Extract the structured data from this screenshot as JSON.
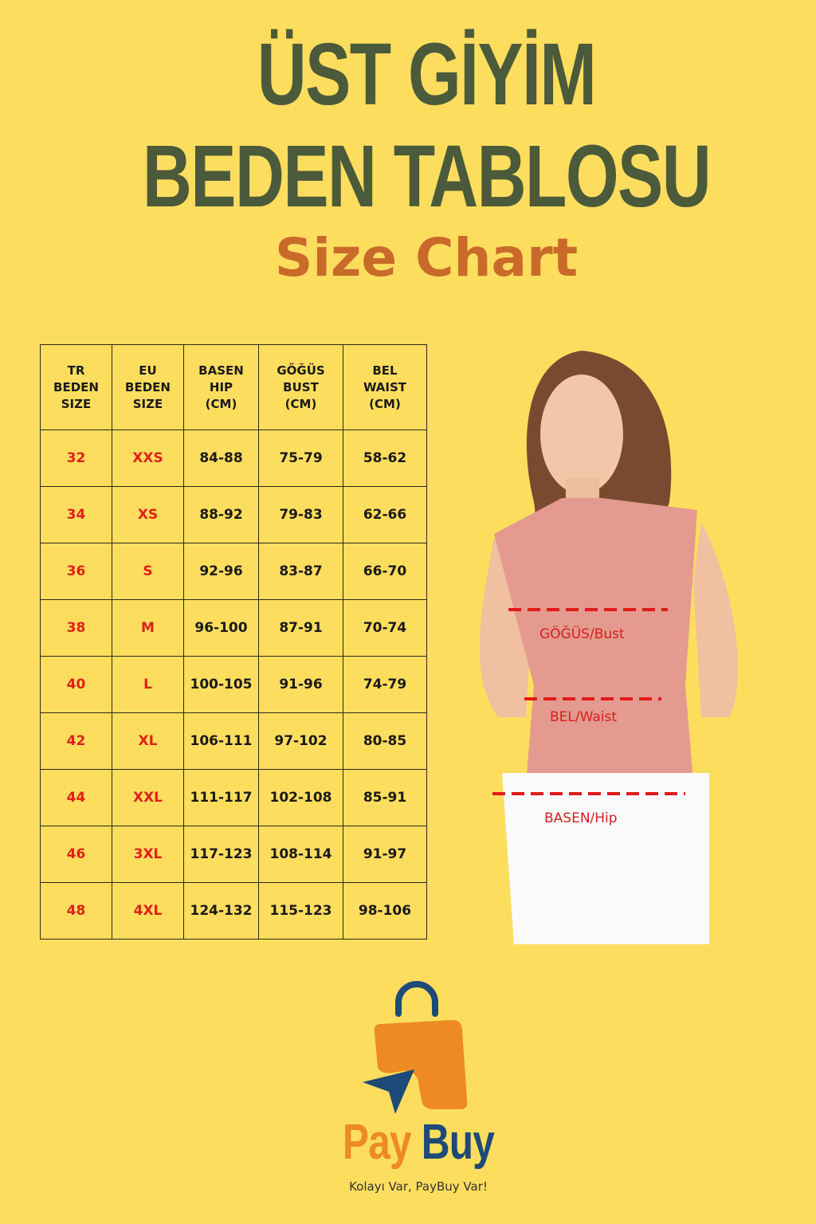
{
  "header": {
    "title_line1": "ÜST GİYİM",
    "title_line2": "BEDEN TABLOSU",
    "subtitle": "Size Chart"
  },
  "table": {
    "headers": [
      "TR\nBEDEN\nSIZE",
      "EU\nBEDEN\nSIZE",
      "BASEN\nHIP\n(CM)",
      "GÖĞÜS\nBUST\n(CM)",
      "BEL\nWAIST\n(CM)"
    ],
    "rows": [
      [
        "32",
        "XXS",
        "84-88",
        "75-79",
        "58-62"
      ],
      [
        "34",
        "XS",
        "88-92",
        "79-83",
        "62-66"
      ],
      [
        "36",
        "S",
        "92-96",
        "83-87",
        "66-70"
      ],
      [
        "38",
        "M",
        "96-100",
        "87-91",
        "70-74"
      ],
      [
        "40",
        "L",
        "100-105",
        "91-96",
        "74-79"
      ],
      [
        "42",
        "XL",
        "106-111",
        "97-102",
        "80-85"
      ],
      [
        "44",
        "XXL",
        "111-117",
        "102-108",
        "85-91"
      ],
      [
        "46",
        "3XL",
        "117-123",
        "108-114",
        "91-97"
      ],
      [
        "48",
        "4XL",
        "124-132",
        "115-123",
        "98-106"
      ]
    ]
  },
  "figure": {
    "bust_label": "GÖĞÜS/Bust",
    "waist_label": "BEL/Waist",
    "hip_label": "BASEN/Hip"
  },
  "brand": {
    "pay": "Pay",
    "buy": "Buy",
    "tagline": "Kolayı Var, PayBuy Var!"
  },
  "colors": {
    "background": "#fddd5e",
    "title": "#4b5a3a",
    "subtitle": "#c96a2b",
    "size_red": "#e0201a",
    "brand_orange": "#ee8a22",
    "brand_blue": "#1d4a78"
  }
}
